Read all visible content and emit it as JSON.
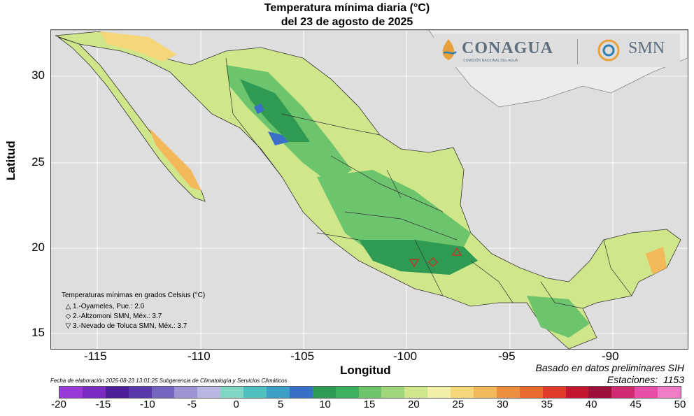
{
  "header": {
    "title_line1": "Temperatura mínima diaria (°C)",
    "title_line2": "del 23 de agosto de 2025"
  },
  "logos": {
    "conagua": "CONAGUA",
    "conagua_sub": "COMISIÓN NACIONAL DEL AGUA",
    "smn": "SMN"
  },
  "axes": {
    "xlabel": "Longitud",
    "ylabel": "Latitud",
    "xticks": [
      "-115",
      "-110",
      "-105",
      "-100",
      "-95",
      "-90"
    ],
    "yticks": [
      "30",
      "25",
      "20",
      "15"
    ]
  },
  "legend": {
    "title": "Temperaturas mínimas en grados Celsius (°C)",
    "entries": [
      {
        "symbol": "△",
        "text": "1.-Oyameles, Pue.: 2.0"
      },
      {
        "symbol": "◇",
        "text": "2.-Altzomoni SMN, Méx.: 3.7"
      },
      {
        "symbol": "▽",
        "text": "3.-Nevado de Toluca SMN, Méx.: 3.7"
      }
    ]
  },
  "notes": {
    "basado": "Basado en datos preliminares SIH",
    "estaciones_label": "Estaciones:",
    "estaciones_value": "1153",
    "fecha": "Fecha de elaboración 2025-08-23 13:01:25 Subgerencia de Climatología y Servicios Climáticos"
  },
  "colorbar": {
    "ticks": [
      "-20",
      "-15",
      "-10",
      "-5",
      "0",
      "5",
      "10",
      "15",
      "20",
      "25",
      "30",
      "35",
      "40",
      "45",
      "50"
    ],
    "colors": [
      "#9a3ad6",
      "#7a2cc0",
      "#4b1e9a",
      "#5a3aa8",
      "#7466c0",
      "#9b93d2",
      "#b9b6e2",
      "#7fd6c4",
      "#4fc0c0",
      "#3aa0c8",
      "#3a6fc8",
      "#2e9a52",
      "#3fb15e",
      "#6cc46c",
      "#9fd67a",
      "#cfe68a",
      "#f1f0a6",
      "#f5d77a",
      "#f2b85a",
      "#ee8f3e",
      "#e96a2e",
      "#df3a2a",
      "#c4162e",
      "#a00f3a",
      "#d02a72",
      "#e84ea8",
      "#f07cc8"
    ]
  },
  "map": {
    "sea_color": "#dedede",
    "land_us_color": "#ececec"
  }
}
